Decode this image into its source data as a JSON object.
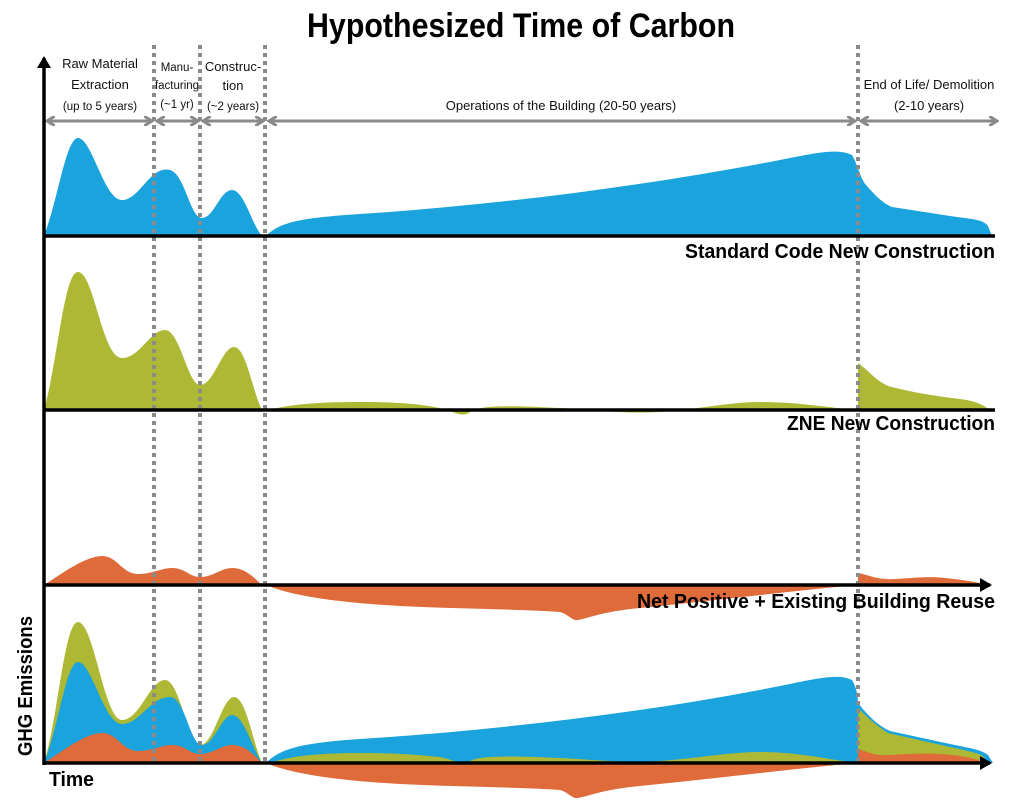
{
  "title": "Hypothesized Time of Carbon",
  "colors": {
    "standard": "#1aa3dc",
    "zne": "#adb934",
    "net_positive": "#df6b3b",
    "divider": "#8a8a8a"
  },
  "phases": [
    {
      "lines": [
        "Raw Material",
        "Extraction",
        "(up to 5 years)"
      ]
    },
    {
      "lines": [
        "Manu-",
        "facturing",
        "(~1 yr)"
      ]
    },
    {
      "lines": [
        "Construc-",
        "tion",
        "(~2 years)"
      ]
    },
    {
      "lines": [
        "Operations of the Building (20-50 years)"
      ]
    },
    {
      "lines": [
        "End of Life/ Demolition",
        "(2-10 years)"
      ]
    }
  ],
  "panels": [
    {
      "label": "Standard Code New Construction"
    },
    {
      "label": "ZNE New Construction"
    },
    {
      "label": "Net Positive + Existing Building Reuse"
    }
  ],
  "axes": {
    "y_label": "GHG Emissions",
    "x_label": "Time"
  }
}
